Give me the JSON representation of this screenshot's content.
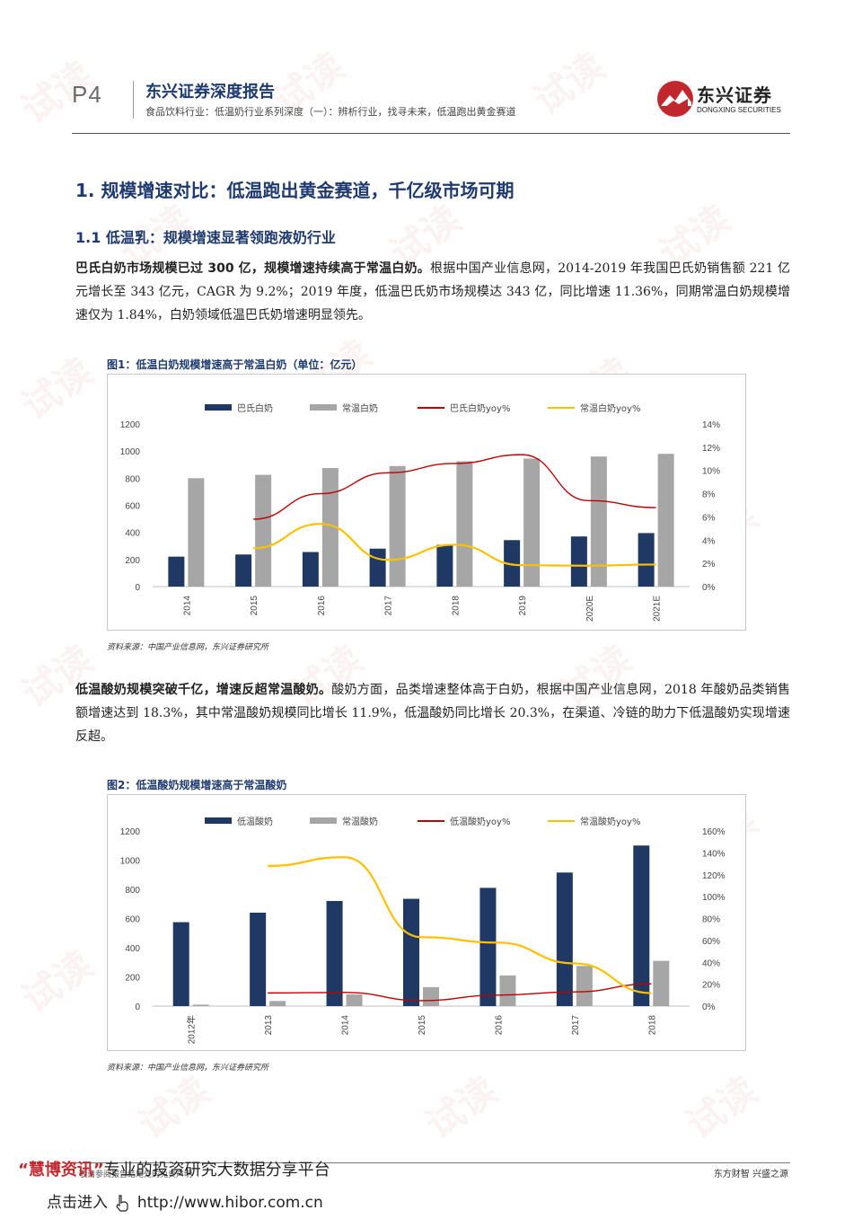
{
  "header": {
    "page_no": "P4",
    "report_type": "东兴证券深度报告",
    "subtitle": "食品饮料行业：低温奶行业系列深度（一）：辨析行业，找寻未来，低温跑出黄金赛道",
    "logo_name": "东兴证券",
    "logo_en": "DONGXING SECURITIES"
  },
  "section": {
    "h1": "1. 规模增速对比：低温跑出黄金赛道，千亿级市场可期",
    "h2": "1.1 低温乳：规模增速显著领跑液奶行业"
  },
  "paragraphs": {
    "p1_bold": "巴氏白奶市场规模已过 300 亿，规模增速持续高于常温白奶。",
    "p1_text": "根据中国产业信息网，2014-2019 年我国巴氏奶销售额 221 亿元增长至 343 亿元，CAGR 为 9.2%；2019 年度，低温巴氏奶市场规模达 343 亿，同比增速 11.36%，同期常温白奶规模增速仅为 1.84%，白奶领域低温巴氏奶增速明显领先。",
    "p2_bold": "低温酸奶规模突破千亿，增速反超常温酸奶。",
    "p2_text": "酸奶方面，品类增速整体高于白奶，根据中国产业信息网，2018 年酸奶品类销售额增速达到 18.3%，其中常温酸奶规模同比增长 11.9%，低温酸奶同比增长 20.3%，在渠道、冷链的助力下低温酸奶实现增速反超。"
  },
  "figures": {
    "fig1_title": "图1：低温白奶规模增速高于常温白奶（单位：亿元）",
    "fig1_source": "资料来源：中国产业信息网，东兴证券研究所",
    "fig2_title": "图2：低温酸奶规模增速高于常温酸奶",
    "fig2_source": "资料来源：中国产业信息网，东兴证券研究所"
  },
  "footer": {
    "left": "敬请参阅报告结尾处的免责声明",
    "right": "东方财智 兴盛之源",
    "promo_brand": "“慧博资讯”",
    "promo_text": "专业的投资研究大数据分享平台",
    "promo_link_prefix": "点击进入",
    "promo_link": "http://www.hibor.com.cn"
  },
  "watermark_text": "试读",
  "chart_data": [
    {
      "type": "bar",
      "title": "图1：低温白奶规模增速高于常温白奶（单位：亿元）",
      "categories": [
        "2014",
        "2015",
        "2016",
        "2017",
        "2018",
        "2019",
        "2020E",
        "2021E"
      ],
      "series": [
        {
          "name": "巴氏白奶",
          "type": "bar",
          "axis": "left",
          "color": "#1f3864",
          "values": [
            221,
            237,
            255,
            280,
            308,
            343,
            370,
            395
          ]
        },
        {
          "name": "常温白奶",
          "type": "bar",
          "axis": "left",
          "color": "#a6a6a6",
          "values": [
            800,
            825,
            875,
            890,
            925,
            945,
            960,
            980
          ]
        },
        {
          "name": "巴氏白奶yoy%",
          "type": "line",
          "axis": "right",
          "color": "#c00000",
          "values": [
            null,
            5.8,
            8.0,
            9.8,
            10.6,
            11.36,
            7.4,
            6.8
          ]
        },
        {
          "name": "常温白奶yoy%",
          "type": "line",
          "axis": "right",
          "color": "#ffc000",
          "values": [
            null,
            3.3,
            5.4,
            2.3,
            3.6,
            1.84,
            1.8,
            1.9
          ]
        }
      ],
      "ylim_left": [
        0,
        1200
      ],
      "yticks_left": [
        "0",
        "200",
        "400",
        "600",
        "800",
        "1000",
        "1200"
      ],
      "ylim_right": [
        0,
        14
      ],
      "yticks_right": [
        "0%",
        "2%",
        "4%",
        "6%",
        "8%",
        "10%",
        "12%",
        "14%"
      ],
      "legend": "top"
    },
    {
      "type": "bar",
      "title": "图2：低温酸奶规模增速高于常温酸奶",
      "categories": [
        "2012年",
        "2013",
        "2014",
        "2015",
        "2016",
        "2017",
        "2018"
      ],
      "series": [
        {
          "name": "低温酸奶",
          "type": "bar",
          "axis": "left",
          "color": "#1f3864",
          "values": [
            575,
            640,
            720,
            735,
            810,
            915,
            1100
          ]
        },
        {
          "name": "常温酸奶",
          "type": "bar",
          "axis": "left",
          "color": "#a6a6a6",
          "values": [
            10,
            35,
            80,
            130,
            210,
            275,
            310
          ]
        },
        {
          "name": "低温酸奶yoy%",
          "type": "line",
          "axis": "right",
          "color": "#c00000",
          "values": [
            null,
            12.0,
            12.5,
            5.0,
            10.0,
            13.0,
            20.3
          ]
        },
        {
          "name": "常温酸奶yoy%",
          "type": "line",
          "axis": "right",
          "color": "#ffc000",
          "values": [
            null,
            128,
            136,
            63,
            58,
            39,
            11.9
          ]
        }
      ],
      "ylim_left": [
        0,
        1200
      ],
      "yticks_left": [
        "0",
        "200",
        "400",
        "600",
        "800",
        "1000",
        "1200"
      ],
      "ylim_right": [
        0,
        160
      ],
      "yticks_right": [
        "0%",
        "20%",
        "40%",
        "60%",
        "80%",
        "100%",
        "120%",
        "140%",
        "160%"
      ],
      "legend": "top"
    }
  ]
}
